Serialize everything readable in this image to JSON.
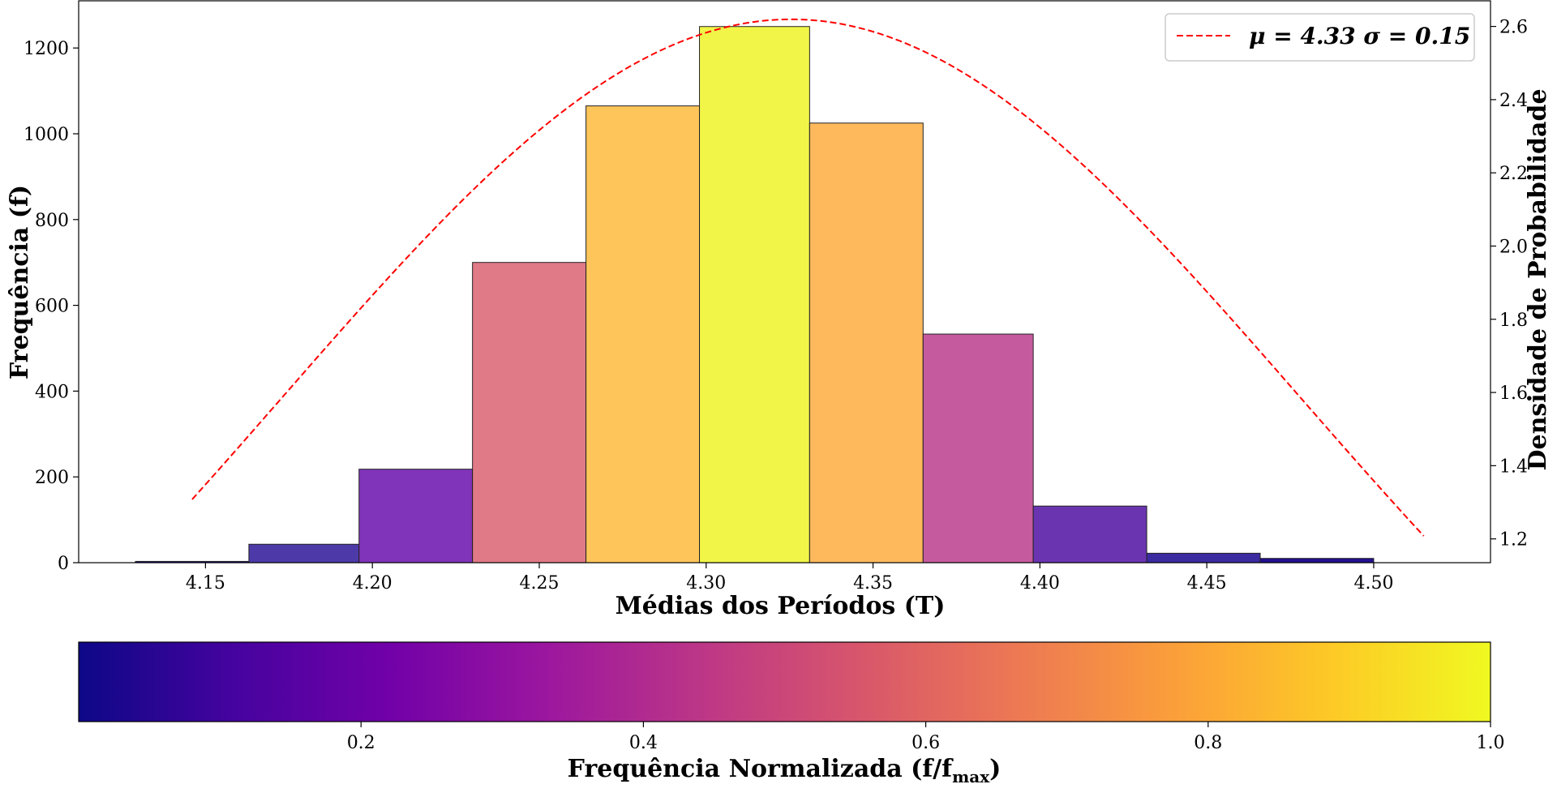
{
  "chart_data": {
    "type": "bar",
    "title": "",
    "xlabel": "Médias dos Períodos (T)",
    "ylabel": "Frequência (f)",
    "y2label": "Densidade de Probabilidade",
    "xlim": [
      4.112,
      4.535
    ],
    "ylim": [
      0,
      1310
    ],
    "y2lim": [
      1.135,
      2.67
    ],
    "x_ticks": [
      "4.15",
      "4.20",
      "4.25",
      "4.30",
      "4.35",
      "4.40",
      "4.45",
      "4.50"
    ],
    "y_ticks": [
      "0",
      "200",
      "400",
      "600",
      "800",
      "1000",
      "1200"
    ],
    "y2_ticks": [
      "1.2",
      "1.4",
      "1.6",
      "1.8",
      "2.0",
      "2.2",
      "2.4",
      "2.6"
    ],
    "bins": [
      {
        "left": 4.129,
        "right": 4.163,
        "count": 3,
        "color": "#1b0c8a"
      },
      {
        "left": 4.163,
        "right": 4.196,
        "count": 43,
        "color": "#4d3aa8"
      },
      {
        "left": 4.196,
        "right": 4.23,
        "count": 218,
        "color": "#8034b9"
      },
      {
        "left": 4.23,
        "right": 4.264,
        "count": 700,
        "color": "#e07a86"
      },
      {
        "left": 4.264,
        "right": 4.298,
        "count": 1065,
        "color": "#fec55a"
      },
      {
        "left": 4.298,
        "right": 4.331,
        "count": 1250,
        "color": "#f0f548"
      },
      {
        "left": 4.331,
        "right": 4.365,
        "count": 1025,
        "color": "#fdb95c"
      },
      {
        "left": 4.365,
        "right": 4.398,
        "count": 533,
        "color": "#c55b9e"
      },
      {
        "left": 4.398,
        "right": 4.432,
        "count": 132,
        "color": "#6a34b0"
      },
      {
        "left": 4.432,
        "right": 4.466,
        "count": 22,
        "color": "#3b2ba0"
      },
      {
        "left": 4.466,
        "right": 4.5,
        "count": 10,
        "color": "#22108f"
      }
    ],
    "curve": {
      "type": "normal_pdf",
      "mu": 4.3255,
      "sigma": 0.1523,
      "x_start": 4.146,
      "x_end": 4.515,
      "color": "#ff0000"
    },
    "legend": {
      "label": "μ = 4.33 σ = 0.15",
      "position": "top-right"
    },
    "colorbar": {
      "label": "Frequência Normalizada (f/f",
      "label_sub": "max",
      "label_end": ")",
      "range": [
        0.0,
        1.0
      ],
      "ticks": [
        "0.2",
        "0.4",
        "0.6",
        "0.8",
        "1.0"
      ],
      "colormap": [
        "#0d0887",
        "#46039f",
        "#7201a8",
        "#9c179e",
        "#bd3786",
        "#d8576b",
        "#ed7953",
        "#fb9f3a",
        "#fdca26",
        "#f0f921"
      ]
    }
  }
}
